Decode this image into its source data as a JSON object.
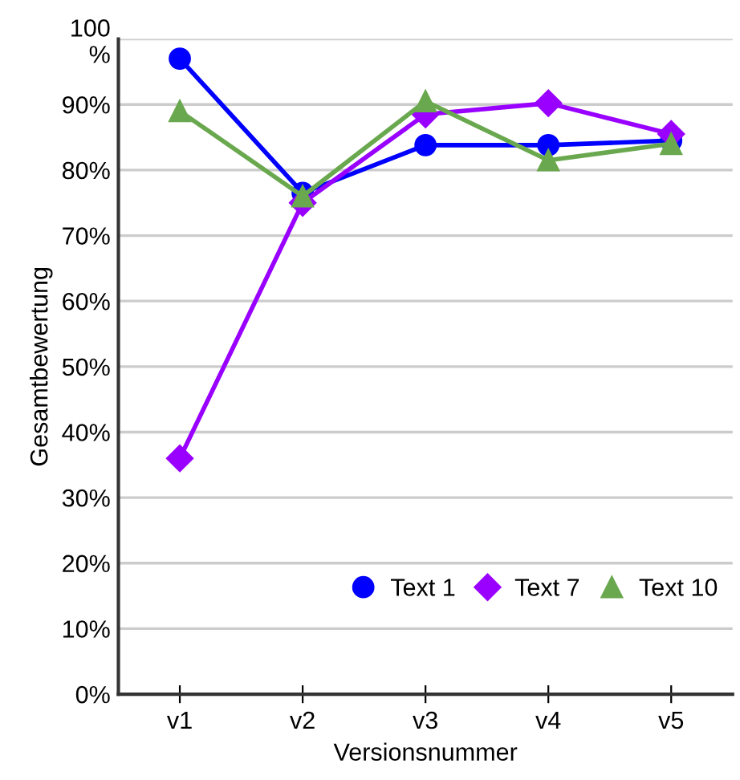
{
  "chart_data": {
    "type": "line",
    "xlabel": "Versionsnummer",
    "ylabel": "Gesamtbewertung",
    "categories": [
      "v1",
      "v2",
      "v3",
      "v4",
      "v5"
    ],
    "series": [
      {
        "name": "Text 1",
        "color": "#0000ff",
        "marker": "circle",
        "values": [
          97,
          76.5,
          83.8,
          83.8,
          84.5
        ]
      },
      {
        "name": "Text 7",
        "color": "#9900ff",
        "marker": "diamond",
        "values": [
          36,
          75,
          88.5,
          90.2,
          85.5
        ]
      },
      {
        "name": "Text 10",
        "color": "#6aa84f",
        "marker": "triangle",
        "values": [
          89,
          76,
          90.5,
          81.5,
          84
        ]
      }
    ],
    "ylim": [
      0,
      100
    ],
    "yticks": [
      {
        "value": 0,
        "label": "0%"
      },
      {
        "value": 10,
        "label": "10%"
      },
      {
        "value": 20,
        "label": "20%"
      },
      {
        "value": 30,
        "label": "30%"
      },
      {
        "value": 40,
        "label": "40%"
      },
      {
        "value": 50,
        "label": "50%"
      },
      {
        "value": 60,
        "label": "60%"
      },
      {
        "value": 70,
        "label": "70%"
      },
      {
        "value": 80,
        "label": "80%"
      },
      {
        "value": 90,
        "label": "90%"
      },
      {
        "value": 100,
        "label": "100\n%"
      }
    ],
    "grid": "y",
    "legend": "bottom right",
    "line_style": "solid"
  }
}
